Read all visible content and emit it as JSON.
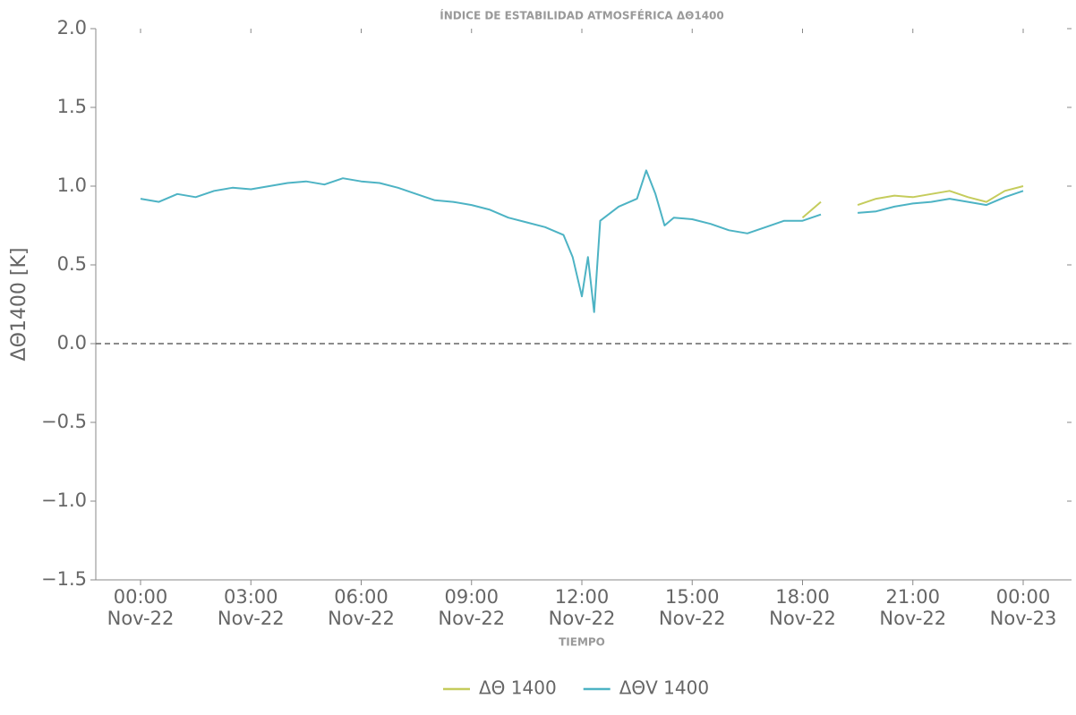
{
  "chart_data": {
    "type": "line",
    "title": "ÍNDICE DE ESTABILIDAD ATMOSFÉRICA ΔΘ1400",
    "xlabel": "TIEMPO",
    "ylabel": "ΔΘ1400 [K]",
    "x": [
      "Nov-22 00:00",
      "Nov-22 00:30",
      "Nov-22 01:00",
      "Nov-22 01:30",
      "Nov-22 02:00",
      "Nov-22 02:30",
      "Nov-22 03:00",
      "Nov-22 03:30",
      "Nov-22 04:00",
      "Nov-22 04:30",
      "Nov-22 05:00",
      "Nov-22 05:30",
      "Nov-22 06:00",
      "Nov-22 06:30",
      "Nov-22 07:00",
      "Nov-22 07:30",
      "Nov-22 08:00",
      "Nov-22 08:30",
      "Nov-22 09:00",
      "Nov-22 09:30",
      "Nov-22 10:00",
      "Nov-22 10:30",
      "Nov-22 11:00",
      "Nov-22 11:30",
      "Nov-22 11:45",
      "Nov-22 12:00",
      "Nov-22 12:10",
      "Nov-22 12:20",
      "Nov-22 12:30",
      "Nov-22 13:00",
      "Nov-22 13:30",
      "Nov-22 13:45",
      "Nov-22 14:00",
      "Nov-22 14:15",
      "Nov-22 14:30",
      "Nov-22 15:00",
      "Nov-22 15:30",
      "Nov-22 16:00",
      "Nov-22 16:30",
      "Nov-22 17:00",
      "Nov-22 17:30",
      "Nov-22 18:00",
      "Nov-22 18:30",
      "Nov-22 19:00",
      "Nov-22 19:30",
      "Nov-22 20:00",
      "Nov-22 20:30",
      "Nov-22 21:00",
      "Nov-22 21:30",
      "Nov-22 22:00",
      "Nov-22 22:30",
      "Nov-22 23:00",
      "Nov-22 23:30",
      "Nov-23 00:00"
    ],
    "series": [
      {
        "name": "ΔΘ 1400",
        "color": "#c5cc5c",
        "values": [
          null,
          null,
          null,
          null,
          null,
          null,
          null,
          null,
          null,
          null,
          null,
          null,
          null,
          null,
          null,
          null,
          null,
          null,
          null,
          null,
          null,
          null,
          null,
          null,
          null,
          null,
          null,
          null,
          null,
          null,
          null,
          null,
          null,
          null,
          null,
          null,
          null,
          null,
          null,
          null,
          null,
          0.8,
          0.9,
          null,
          0.88,
          0.92,
          0.94,
          0.93,
          0.95,
          0.97,
          0.93,
          0.9,
          0.97,
          1.0
        ]
      },
      {
        "name": "ΔΘV 1400",
        "color": "#4db3c4",
        "values": [
          0.92,
          0.9,
          0.95,
          0.93,
          0.97,
          0.99,
          0.98,
          1.0,
          1.02,
          1.03,
          1.01,
          1.05,
          1.03,
          1.02,
          0.99,
          0.95,
          0.91,
          0.9,
          0.88,
          0.85,
          0.8,
          0.77,
          0.74,
          0.69,
          0.55,
          0.3,
          0.55,
          0.2,
          0.78,
          0.87,
          0.92,
          1.1,
          0.95,
          0.75,
          0.8,
          0.79,
          0.76,
          0.72,
          0.7,
          0.74,
          0.78,
          0.78,
          0.82,
          null,
          0.83,
          0.84,
          0.87,
          0.89,
          0.9,
          0.92,
          0.9,
          0.88,
          0.93,
          0.97
        ]
      }
    ],
    "xticks": [
      {
        "value": "Nov-22 00:00",
        "label": "00:00\nNov-22"
      },
      {
        "value": "Nov-22 03:00",
        "label": "03:00\nNov-22"
      },
      {
        "value": "Nov-22 06:00",
        "label": "06:00\nNov-22"
      },
      {
        "value": "Nov-22 09:00",
        "label": "09:00\nNov-22"
      },
      {
        "value": "Nov-22 12:00",
        "label": "12:00\nNov-22"
      },
      {
        "value": "Nov-22 15:00",
        "label": "15:00\nNov-22"
      },
      {
        "value": "Nov-22 18:00",
        "label": "18:00\nNov-22"
      },
      {
        "value": "Nov-22 21:00",
        "label": "21:00\nNov-22"
      },
      {
        "value": "Nov-23 00:00",
        "label": "00:00\nNov-23"
      }
    ],
    "ylim": [
      -1.5,
      2.0
    ],
    "yticks": [
      {
        "value": -1.5,
        "label": "−1.5"
      },
      {
        "value": -1.0,
        "label": "−1.0"
      },
      {
        "value": -0.5,
        "label": "−0.5"
      },
      {
        "value": 0,
        "label": "0.0"
      },
      0.5,
      {
        "value": 1.0,
        "label": "1.0"
      },
      1.5,
      {
        "value": 2.0,
        "label": "2.0"
      }
    ],
    "hline": 0,
    "legend": "bottom"
  }
}
